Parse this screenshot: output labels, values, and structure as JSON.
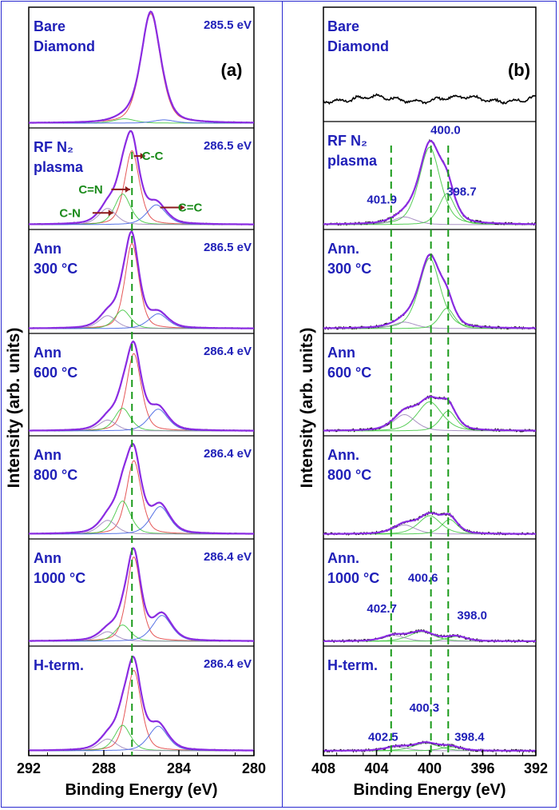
{
  "colors": {
    "frame": "#2a2ad0",
    "envelope": "#8a2be2",
    "experimental": "#000000",
    "cc": "#e03a3a",
    "cn": "#3ac43a",
    "ccdouble": "#3a5ae0",
    "cnd": "#9a7fb8",
    "guide": "#1a9a1a",
    "label_text": "#1f1fb8",
    "annotation_text": "#1a8a1a",
    "arrow": "#8b1a1a"
  },
  "y_axis_label": "Intensity (arb. units)",
  "chart_data": [
    {
      "id": "panel_a",
      "type": "line",
      "panel_label": "(a)",
      "xlabel": "Binding Energy (eV)",
      "xlim": [
        292,
        280
      ],
      "xticks": [
        "292",
        "288",
        "284",
        "280"
      ],
      "guide_lines_ev": [
        286.5
      ],
      "rows": [
        {
          "label_lines": [
            "Bare",
            "Diamond"
          ],
          "peak_label": "285.5 eV",
          "components": [
            {
              "name": "main",
              "center": 285.5,
              "amp": 1.0,
              "width": 0.55,
              "color_key": "cc"
            },
            {
              "name": "side1",
              "center": 286.9,
              "amp": 0.04,
              "width": 0.6,
              "color_key": "cn"
            },
            {
              "name": "side2",
              "center": 284.8,
              "amp": 0.03,
              "width": 0.6,
              "color_key": "ccdouble"
            }
          ]
        },
        {
          "label_lines": [
            "RF N₂",
            "plasma"
          ],
          "peak_label": "286.5 eV",
          "annotations": [
            {
              "text": "C-C",
              "ev": 285.4,
              "frac": 0.76,
              "arrow_from_ev": 286.4,
              "arrow_to_ev": 285.8
            },
            {
              "text": "C=N",
              "ev": 288.7,
              "frac": 0.39,
              "arrow_from_ev": 287.6,
              "arrow_to_ev": 286.6
            },
            {
              "text": "C-N",
              "ev": 289.8,
              "frac": 0.13,
              "arrow_from_ev": 288.6,
              "arrow_to_ev": 287.5
            },
            {
              "text": "C=C",
              "ev": 283.4,
              "frac": 0.19,
              "arrow_from_ev": 285.0,
              "arrow_to_ev": 283.7
            }
          ],
          "components": [
            {
              "name": "C-C",
              "center": 286.5,
              "amp": 0.82,
              "width": 0.42,
              "color_key": "cc"
            },
            {
              "name": "C=N",
              "center": 287.0,
              "amp": 0.34,
              "width": 0.45,
              "color_key": "cn"
            },
            {
              "name": "C-N",
              "center": 287.8,
              "amp": 0.18,
              "width": 0.5,
              "color_key": "cnd"
            },
            {
              "name": "C=C",
              "center": 285.2,
              "amp": 0.22,
              "width": 0.55,
              "color_key": "ccdouble"
            }
          ]
        },
        {
          "label_lines": [
            "Ann",
            "300 °C"
          ],
          "peak_label": "286.5 eV",
          "components": [
            {
              "name": "C-C",
              "center": 286.5,
              "amp": 0.92,
              "width": 0.4,
              "color_key": "cc"
            },
            {
              "name": "C=N",
              "center": 287.0,
              "amp": 0.2,
              "width": 0.45,
              "color_key": "cn"
            },
            {
              "name": "C-N",
              "center": 287.8,
              "amp": 0.14,
              "width": 0.5,
              "color_key": "cnd"
            },
            {
              "name": "C=C",
              "center": 285.1,
              "amp": 0.16,
              "width": 0.55,
              "color_key": "ccdouble"
            }
          ]
        },
        {
          "label_lines": [
            "Ann",
            "600 °C"
          ],
          "peak_label": "286.4 eV",
          "components": [
            {
              "name": "C-C",
              "center": 286.4,
              "amp": 0.85,
              "width": 0.42,
              "color_key": "cc"
            },
            {
              "name": "C=N",
              "center": 287.0,
              "amp": 0.25,
              "width": 0.45,
              "color_key": "cn"
            },
            {
              "name": "C-N",
              "center": 287.8,
              "amp": 0.12,
              "width": 0.5,
              "color_key": "cnd"
            },
            {
              "name": "C=C",
              "center": 285.1,
              "amp": 0.24,
              "width": 0.55,
              "color_key": "ccdouble"
            }
          ]
        },
        {
          "label_lines": [
            "Ann",
            "800 °C"
          ],
          "peak_label": "286.4 eV",
          "components": [
            {
              "name": "C-C",
              "center": 286.4,
              "amp": 0.8,
              "width": 0.42,
              "color_key": "cc"
            },
            {
              "name": "C=N",
              "center": 287.0,
              "amp": 0.36,
              "width": 0.45,
              "color_key": "cn"
            },
            {
              "name": "C-N",
              "center": 287.8,
              "amp": 0.15,
              "width": 0.5,
              "color_key": "cnd"
            },
            {
              "name": "C=C",
              "center": 285.0,
              "amp": 0.3,
              "width": 0.55,
              "color_key": "ccdouble"
            }
          ]
        },
        {
          "label_lines": [
            "Ann",
            "1000 °C"
          ],
          "peak_label": "286.4 eV",
          "components": [
            {
              "name": "C-C",
              "center": 286.4,
              "amp": 0.88,
              "width": 0.4,
              "color_key": "cc"
            },
            {
              "name": "C=N",
              "center": 287.0,
              "amp": 0.17,
              "width": 0.45,
              "color_key": "cn"
            },
            {
              "name": "C-N",
              "center": 287.8,
              "amp": 0.1,
              "width": 0.5,
              "color_key": "cnd"
            },
            {
              "name": "C=C",
              "center": 284.9,
              "amp": 0.27,
              "width": 0.55,
              "color_key": "ccdouble"
            }
          ]
        },
        {
          "label_lines": [
            "H-term."
          ],
          "peak_label": "286.4 eV",
          "components": [
            {
              "name": "C-C",
              "center": 286.4,
              "amp": 0.82,
              "width": 0.42,
              "color_key": "cc"
            },
            {
              "name": "C=N",
              "center": 287.0,
              "amp": 0.26,
              "width": 0.45,
              "color_key": "cn"
            },
            {
              "name": "C-N",
              "center": 287.8,
              "amp": 0.12,
              "width": 0.5,
              "color_key": "cnd"
            },
            {
              "name": "C=C",
              "center": 285.1,
              "amp": 0.25,
              "width": 0.55,
              "color_key": "ccdouble"
            }
          ]
        }
      ]
    },
    {
      "id": "panel_b",
      "type": "line",
      "panel_label": "(b)",
      "xlabel": "Binding Energy (eV)",
      "xlim": [
        408,
        392
      ],
      "xticks": [
        "408",
        "404",
        "400",
        "396",
        "392"
      ],
      "guide_lines_ev": [
        402.9,
        399.9,
        398.6
      ],
      "rows": [
        {
          "label_lines": [
            "Bare",
            "Diamond"
          ],
          "noise_only": true
        },
        {
          "label_lines": [
            "RF N₂",
            "plasma"
          ],
          "peak_values": [
            {
              "text": "400.0",
              "ev": 398.8,
              "frac": 0.94
            },
            {
              "text": "401.9",
              "ev": 403.6,
              "frac": 0.22
            },
            {
              "text": "398.7",
              "ev": 397.6,
              "frac": 0.3
            }
          ],
          "components": [
            {
              "name": "400.0",
              "center": 400.0,
              "amp": 0.8,
              "width": 0.85,
              "color_key": "cn"
            },
            {
              "name": "401.9",
              "center": 401.9,
              "amp": 0.08,
              "width": 0.9,
              "color_key": "cnd"
            },
            {
              "name": "398.7",
              "center": 398.7,
              "amp": 0.32,
              "width": 0.65,
              "color_key": "cn"
            }
          ]
        },
        {
          "label_lines": [
            "Ann.",
            "300 °C"
          ],
          "components": [
            {
              "name": "400.0",
              "center": 400.0,
              "amp": 0.76,
              "width": 0.85,
              "color_key": "cn"
            },
            {
              "name": "401.9",
              "center": 401.9,
              "amp": 0.07,
              "width": 0.9,
              "color_key": "cnd"
            },
            {
              "name": "398.7",
              "center": 398.7,
              "amp": 0.22,
              "width": 0.6,
              "color_key": "cn"
            }
          ]
        },
        {
          "label_lines": [
            "Ann",
            "600 °C"
          ],
          "components": [
            {
              "name": "400.0",
              "center": 400.0,
              "amp": 0.32,
              "width": 1.0,
              "color_key": "cn"
            },
            {
              "name": "401.9",
              "center": 401.9,
              "amp": 0.18,
              "width": 0.9,
              "color_key": "cnd"
            },
            {
              "name": "398.7",
              "center": 398.6,
              "amp": 0.22,
              "width": 0.65,
              "color_key": "cn"
            }
          ]
        },
        {
          "label_lines": [
            "Ann.",
            "800 °C"
          ],
          "components": [
            {
              "name": "400.0",
              "center": 400.0,
              "amp": 0.2,
              "width": 0.9,
              "color_key": "cn"
            },
            {
              "name": "401.9",
              "center": 401.9,
              "amp": 0.1,
              "width": 0.9,
              "color_key": "cnd"
            },
            {
              "name": "398.7",
              "center": 398.5,
              "amp": 0.16,
              "width": 0.65,
              "color_key": "cn"
            }
          ]
        },
        {
          "label_lines": [
            "Ann.",
            "1000 °C"
          ],
          "peak_values": [
            {
              "text": "402.7",
              "ev": 403.6,
              "frac": 0.3
            },
            {
              "text": "400.6",
              "ev": 400.5,
              "frac": 0.62
            },
            {
              "text": "398.0",
              "ev": 396.8,
              "frac": 0.23
            }
          ],
          "components": [
            {
              "name": "400.6",
              "center": 400.6,
              "amp": 0.1,
              "width": 1.0,
              "color_key": "cn"
            },
            {
              "name": "402.7",
              "center": 402.7,
              "amp": 0.06,
              "width": 0.9,
              "color_key": "cnd"
            },
            {
              "name": "398.0",
              "center": 398.0,
              "amp": 0.05,
              "width": 0.8,
              "color_key": "cn"
            }
          ]
        },
        {
          "label_lines": [
            "H-term."
          ],
          "peak_values": [
            {
              "text": "402.5",
              "ev": 403.5,
              "frac": 0.1
            },
            {
              "text": "400.3",
              "ev": 400.4,
              "frac": 0.4
            },
            {
              "text": "398.4",
              "ev": 397.0,
              "frac": 0.1
            }
          ],
          "components": [
            {
              "name": "400.3",
              "center": 400.3,
              "amp": 0.08,
              "width": 1.0,
              "color_key": "cn"
            },
            {
              "name": "402.5",
              "center": 402.5,
              "amp": 0.04,
              "width": 0.9,
              "color_key": "cnd"
            },
            {
              "name": "398.4",
              "center": 398.4,
              "amp": 0.04,
              "width": 0.8,
              "color_key": "cn"
            }
          ]
        }
      ]
    }
  ]
}
